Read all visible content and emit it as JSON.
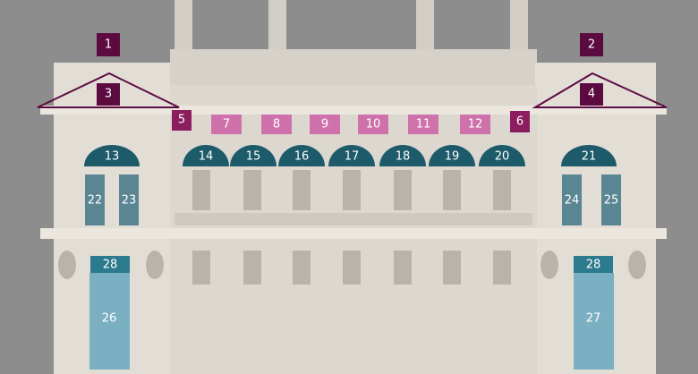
{
  "labels": [
    "1",
    "2",
    "3",
    "4",
    "5",
    "6",
    "7",
    "8",
    "9",
    "10",
    "11",
    "12",
    "13",
    "14",
    "15",
    "16",
    "17",
    "18",
    "19",
    "20",
    "21",
    "22",
    "23",
    "24",
    "25",
    "26",
    "27",
    "28",
    "28"
  ]
}
